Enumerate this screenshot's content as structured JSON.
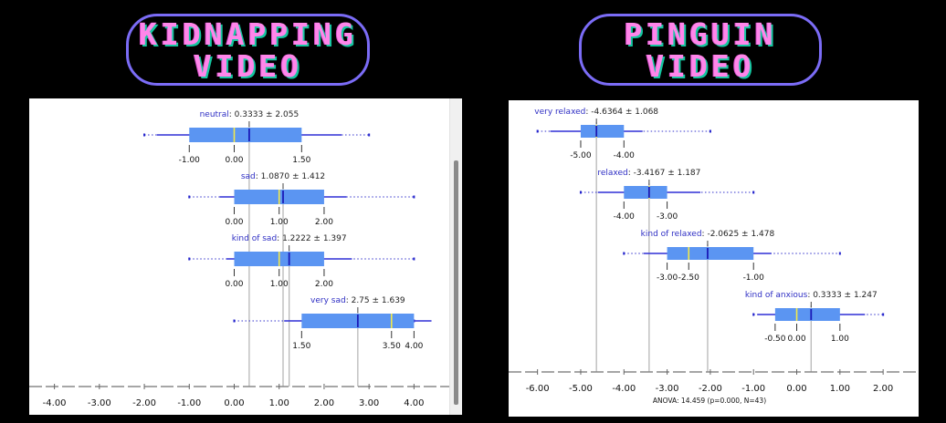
{
  "left_title": "KIDNAPPING\nVIDEO",
  "right_title": "PINGUIN\nVIDEO",
  "chart_data": [
    {
      "type": "boxplot",
      "title": "",
      "xlim": [
        -4.5,
        4.5
      ],
      "x_ticks": [
        -4,
        -3,
        -2,
        -1,
        0,
        1,
        2,
        3,
        4
      ],
      "tick_labels": [
        "-4.00",
        "-3.00",
        "-2.00",
        "-1.00",
        "0.00",
        "1.00",
        "2.00",
        "3.00",
        "4.00"
      ],
      "footer": "",
      "groups": [
        {
          "name": "neutral",
          "mean": 0.3333,
          "sd": 2.055,
          "stats": "0.3333 ± 2.055",
          "q1": -1,
          "median": 0,
          "q3": 1.5,
          "whisker_low": -2,
          "whisker_high": 3,
          "mean_line": 0.3333,
          "labels": [
            "-1.00",
            "0.00",
            "1.50"
          ]
        },
        {
          "name": "sad",
          "mean": 1.087,
          "sd": 1.412,
          "stats": "1.0870 ± 1.412",
          "q1": 0,
          "median": 1,
          "q3": 2,
          "whisker_low": -1,
          "whisker_high": 4,
          "mean_line": 1.087,
          "labels": [
            "0.00",
            "1.00",
            "2.00"
          ]
        },
        {
          "name": "kind of sad",
          "mean": 1.2222,
          "sd": 1.397,
          "stats": "1.2222 ± 1.397",
          "q1": 0,
          "median": 1,
          "q3": 2,
          "whisker_low": -1,
          "whisker_high": 4,
          "mean_line": 1.2222,
          "labels": [
            "0.00",
            "1.00",
            "2.00"
          ]
        },
        {
          "name": "very sad",
          "mean": 2.75,
          "sd": 1.639,
          "stats": "2.75 ± 1.639",
          "q1": 1.5,
          "median": 3.5,
          "q3": 4,
          "whisker_low": 0,
          "whisker_high": 4,
          "mean_line": 2.75,
          "labels": [
            "1.50",
            "3.50",
            "4.00"
          ]
        }
      ]
    },
    {
      "type": "boxplot",
      "title": "",
      "xlim": [
        -6.5,
        2.8
      ],
      "x_ticks": [
        -6,
        -5,
        -4,
        -3,
        -2,
        -1,
        0,
        1,
        2
      ],
      "tick_labels": [
        "-6.00",
        "-5.00",
        "-4.00",
        "-3.00",
        "-2.00",
        "-1.00",
        "0.00",
        "1.00",
        "2.00"
      ],
      "footer": "ANOVA: 14.459 (p=0.000, N=43)",
      "groups": [
        {
          "name": "very relaxed",
          "mean": -4.6364,
          "sd": 1.068,
          "stats": "-4.6364 ± 1.068",
          "q1": -5,
          "median": -4.6364,
          "q3": -4,
          "whisker_low": -6,
          "whisker_high": -2,
          "mean_line": -4.6364,
          "labels": [
            "-5.00",
            "-4.00"
          ]
        },
        {
          "name": "relaxed",
          "mean": -3.4167,
          "sd": 1.187,
          "stats": "-3.4167 ± 1.187",
          "q1": -4,
          "median": -3.4167,
          "q3": -3,
          "whisker_low": -5,
          "whisker_high": -1,
          "mean_line": -3.4167,
          "labels": [
            "-4.00",
            "-3.00"
          ]
        },
        {
          "name": "kind of relaxed",
          "mean": -2.0625,
          "sd": 1.478,
          "stats": "-2.0625 ± 1.478",
          "q1": -3,
          "median": -2.5,
          "q3": -1,
          "whisker_low": -4,
          "whisker_high": 1,
          "mean_line": -2.0625,
          "labels": [
            "-3.00",
            "-2.50",
            "-1.00"
          ]
        },
        {
          "name": "kind of anxious",
          "mean": 0.3333,
          "sd": 1.247,
          "stats": "0.3333 ± 1.247",
          "q1": -0.5,
          "median": 0,
          "q3": 1,
          "whisker_low": -1,
          "whisker_high": 2,
          "mean_line": 0.3333,
          "labels": [
            "-0.50",
            "0.00",
            "1.00"
          ]
        }
      ]
    }
  ]
}
